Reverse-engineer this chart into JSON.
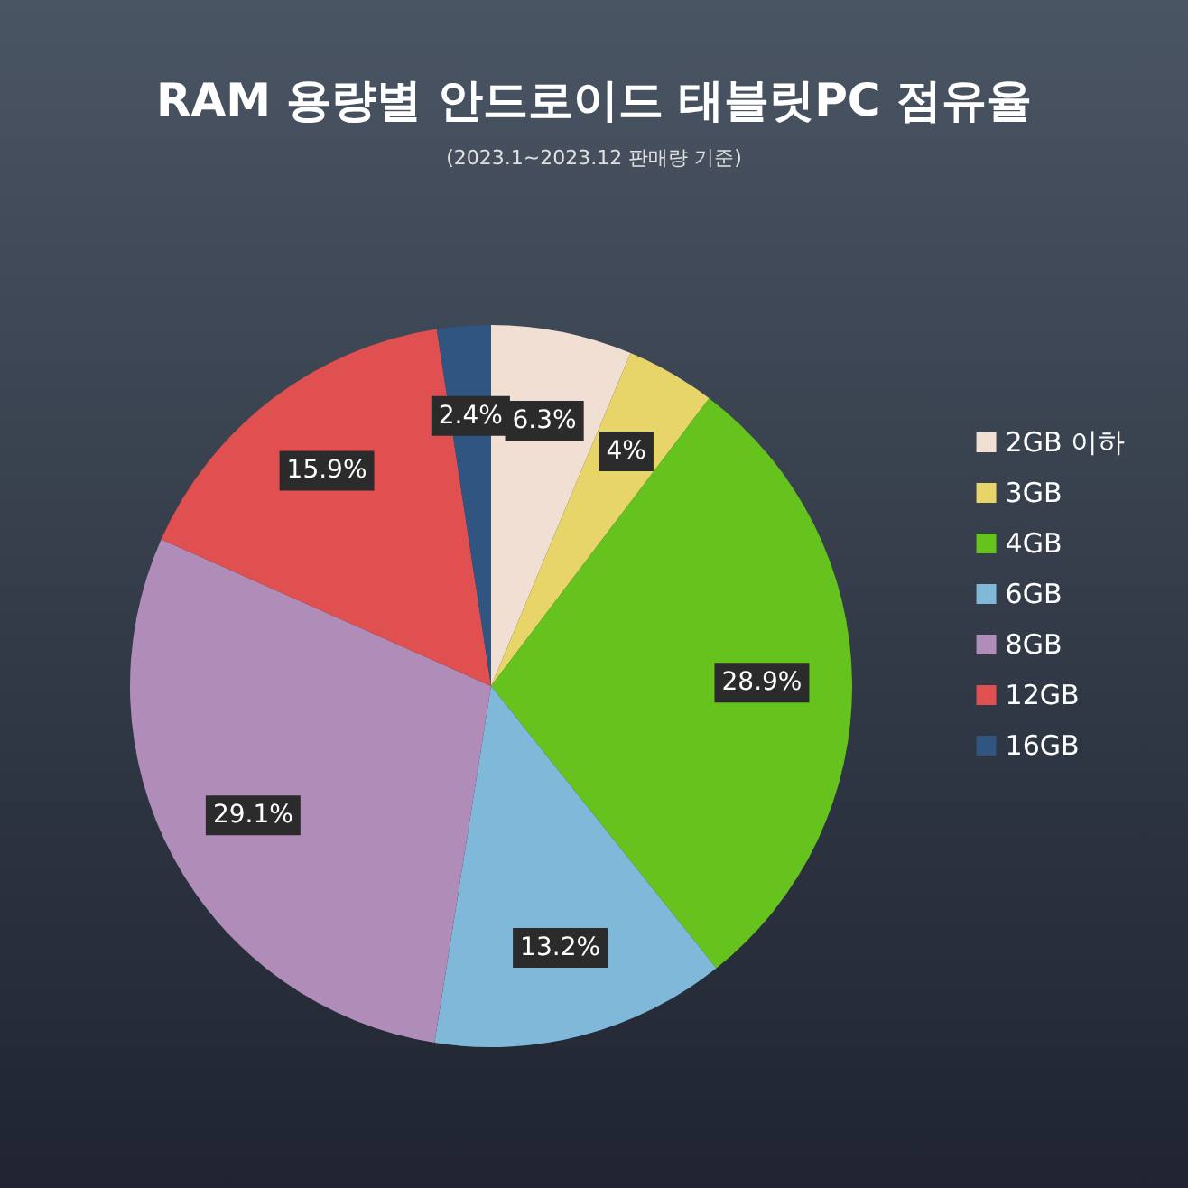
{
  "chart_data": {
    "type": "pie",
    "title": "RAM 용량별 안드로이드 태블릿PC 점유율",
    "subtitle": "(2023.1~2023.12 판매량 기준)",
    "categories": [
      "2GB 이하",
      "3GB",
      "4GB",
      "6GB",
      "8GB",
      "12GB",
      "16GB"
    ],
    "values": [
      6.3,
      4,
      28.9,
      13.2,
      29.1,
      15.9,
      2.4
    ],
    "value_labels": [
      "6.3%",
      "4%",
      "28.9%",
      "13.2%",
      "29.1%",
      "15.9%",
      "2.4%"
    ],
    "colors": [
      "#f2dfd3",
      "#e8d56a",
      "#66c31e",
      "#7fb8d8",
      "#b08cb8",
      "#e05050",
      "#2f5580"
    ],
    "legend": "right"
  }
}
